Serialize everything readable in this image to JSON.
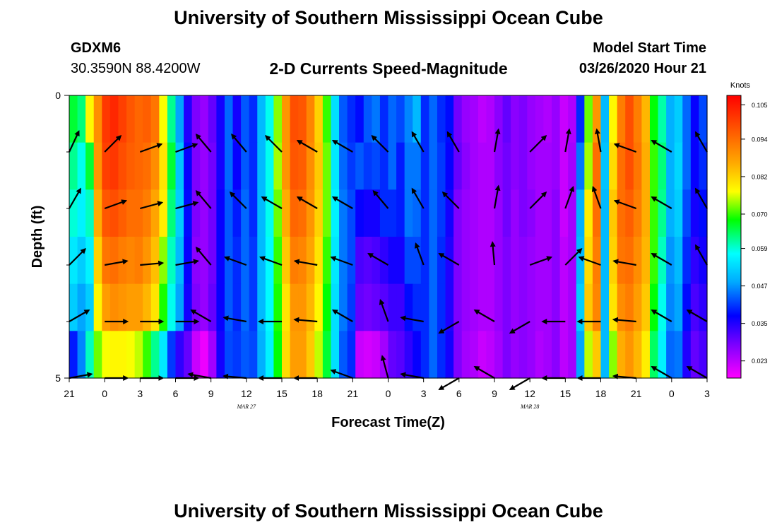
{
  "header": {
    "title_top": "University of Southern Mississippi Ocean Cube",
    "title_bottom": "University of Southern Mississippi Ocean Cube",
    "station": "GDXM6",
    "coords": "30.3590N 88.4200W",
    "plot_title": "2-D Currents Speed-Magnitude",
    "model_start_label": "Model Start Time",
    "model_start_value": "03/26/2020 Hour 21"
  },
  "chart_data": {
    "type": "heatmap",
    "title": "2-D Currents Speed-Magnitude",
    "xlabel": "Forecast Time(Z)",
    "ylabel": "Depth (ft)",
    "x_hours_range": [
      0,
      54
    ],
    "y_range": [
      0,
      5
    ],
    "y_ticks": [
      "0",
      "5"
    ],
    "x_ticks": [
      {
        "h": 0,
        "label": "21"
      },
      {
        "h": 3,
        "label": "0"
      },
      {
        "h": 6,
        "label": "3"
      },
      {
        "h": 9,
        "label": "6"
      },
      {
        "h": 12,
        "label": "9"
      },
      {
        "h": 15,
        "label": "12"
      },
      {
        "h": 18,
        "label": "15"
      },
      {
        "h": 21,
        "label": "18"
      },
      {
        "h": 24,
        "label": "21"
      },
      {
        "h": 27,
        "label": "0"
      },
      {
        "h": 30,
        "label": "3"
      },
      {
        "h": 33,
        "label": "6"
      },
      {
        "h": 36,
        "label": "9"
      },
      {
        "h": 39,
        "label": "12"
      },
      {
        "h": 42,
        "label": "15"
      },
      {
        "h": 45,
        "label": "18"
      },
      {
        "h": 48,
        "label": "21"
      },
      {
        "h": 51,
        "label": "0"
      },
      {
        "h": 54,
        "label": "3"
      }
    ],
    "date_labels": [
      {
        "h": 15,
        "label": "MAR 27"
      },
      {
        "h": 39,
        "label": "MAR 28"
      }
    ],
    "colorbar": {
      "unit": "Knots",
      "min": 0.0175,
      "max": 0.108,
      "ticks": [
        "0.105",
        "0.094",
        "0.082",
        "0.070",
        "0.059",
        "0.047",
        "0.035",
        "0.023"
      ]
    },
    "speed_knots": [
      [
        0.066,
        0.063,
        0.078,
        0.09,
        0.101,
        0.103,
        0.1,
        0.097,
        0.095,
        0.096,
        0.093,
        0.077,
        0.062,
        0.048,
        0.035,
        0.028,
        0.026,
        0.03,
        0.036,
        0.044,
        0.036,
        0.043,
        0.04,
        0.05,
        0.058,
        0.073,
        0.089,
        0.098,
        0.097,
        0.091,
        0.082,
        0.07,
        0.054,
        0.043,
        0.04,
        0.038,
        0.043,
        0.045,
        0.04,
        0.044,
        0.042,
        0.046,
        0.05,
        0.04,
        0.044,
        0.04,
        0.038,
        0.029,
        0.026,
        0.025,
        0.023,
        0.024,
        0.027,
        0.03,
        0.027,
        0.028,
        0.026,
        0.025,
        0.024,
        0.026,
        0.022,
        0.024,
        0.04,
        0.072,
        0.089,
        0.05,
        0.078,
        0.092,
        0.098,
        0.092,
        0.085,
        0.068,
        0.061,
        0.049,
        0.052,
        0.044,
        0.037,
        0.042
      ],
      [
        0.062,
        0.058,
        0.066,
        0.089,
        0.1,
        0.101,
        0.098,
        0.096,
        0.095,
        0.094,
        0.09,
        0.08,
        0.066,
        0.051,
        0.037,
        0.028,
        0.026,
        0.029,
        0.036,
        0.044,
        0.037,
        0.043,
        0.04,
        0.05,
        0.058,
        0.074,
        0.089,
        0.097,
        0.096,
        0.09,
        0.083,
        0.072,
        0.055,
        0.044,
        0.041,
        0.043,
        0.041,
        0.042,
        0.04,
        0.044,
        0.039,
        0.045,
        0.045,
        0.04,
        0.044,
        0.041,
        0.037,
        0.03,
        0.027,
        0.025,
        0.024,
        0.024,
        0.027,
        0.029,
        0.027,
        0.028,
        0.026,
        0.025,
        0.025,
        0.026,
        0.022,
        0.025,
        0.045,
        0.074,
        0.094,
        0.051,
        0.081,
        0.094,
        0.098,
        0.093,
        0.086,
        0.07,
        0.063,
        0.049,
        0.053,
        0.044,
        0.037,
        0.04
      ],
      [
        0.059,
        0.056,
        0.06,
        0.086,
        0.097,
        0.098,
        0.096,
        0.094,
        0.094,
        0.092,
        0.087,
        0.079,
        0.063,
        0.052,
        0.038,
        0.028,
        0.026,
        0.029,
        0.037,
        0.043,
        0.039,
        0.044,
        0.04,
        0.05,
        0.058,
        0.072,
        0.086,
        0.095,
        0.094,
        0.089,
        0.082,
        0.072,
        0.056,
        0.045,
        0.042,
        0.037,
        0.036,
        0.036,
        0.04,
        0.04,
        0.039,
        0.045,
        0.044,
        0.04,
        0.044,
        0.041,
        0.036,
        0.028,
        0.026,
        0.025,
        0.024,
        0.024,
        0.026,
        0.029,
        0.026,
        0.028,
        0.027,
        0.025,
        0.025,
        0.027,
        0.022,
        0.025,
        0.049,
        0.079,
        0.094,
        0.05,
        0.083,
        0.094,
        0.096,
        0.092,
        0.086,
        0.07,
        0.062,
        0.049,
        0.052,
        0.042,
        0.036,
        0.038
      ],
      [
        0.055,
        0.052,
        0.056,
        0.082,
        0.093,
        0.094,
        0.092,
        0.091,
        0.092,
        0.089,
        0.084,
        0.073,
        0.06,
        0.05,
        0.037,
        0.027,
        0.026,
        0.029,
        0.037,
        0.043,
        0.04,
        0.044,
        0.041,
        0.05,
        0.057,
        0.07,
        0.083,
        0.092,
        0.091,
        0.087,
        0.08,
        0.07,
        0.055,
        0.045,
        0.042,
        0.032,
        0.031,
        0.032,
        0.034,
        0.036,
        0.036,
        0.042,
        0.042,
        0.04,
        0.044,
        0.04,
        0.035,
        0.028,
        0.026,
        0.025,
        0.024,
        0.024,
        0.026,
        0.028,
        0.026,
        0.027,
        0.026,
        0.025,
        0.025,
        0.027,
        0.023,
        0.025,
        0.05,
        0.081,
        0.092,
        0.05,
        0.082,
        0.093,
        0.094,
        0.09,
        0.085,
        0.07,
        0.06,
        0.047,
        0.05,
        0.04,
        0.034,
        0.036
      ],
      [
        0.052,
        0.048,
        0.052,
        0.078,
        0.088,
        0.09,
        0.089,
        0.088,
        0.088,
        0.085,
        0.08,
        0.069,
        0.058,
        0.048,
        0.036,
        0.028,
        0.026,
        0.03,
        0.037,
        0.043,
        0.04,
        0.044,
        0.041,
        0.05,
        0.057,
        0.069,
        0.08,
        0.089,
        0.089,
        0.085,
        0.078,
        0.068,
        0.054,
        0.045,
        0.041,
        0.03,
        0.029,
        0.03,
        0.031,
        0.033,
        0.033,
        0.038,
        0.04,
        0.04,
        0.044,
        0.04,
        0.035,
        0.028,
        0.026,
        0.025,
        0.024,
        0.024,
        0.026,
        0.028,
        0.026,
        0.027,
        0.026,
        0.025,
        0.025,
        0.027,
        0.023,
        0.025,
        0.052,
        0.083,
        0.091,
        0.05,
        0.08,
        0.09,
        0.092,
        0.088,
        0.083,
        0.068,
        0.058,
        0.046,
        0.048,
        0.038,
        0.032,
        0.034
      ],
      [
        0.039,
        0.046,
        0.06,
        0.072,
        0.077,
        0.078,
        0.078,
        0.077,
        0.075,
        0.07,
        0.062,
        0.055,
        0.041,
        0.034,
        0.03,
        0.022,
        0.019,
        0.025,
        0.036,
        0.042,
        0.041,
        0.043,
        0.042,
        0.049,
        0.056,
        0.068,
        0.081,
        0.088,
        0.088,
        0.083,
        0.075,
        0.066,
        0.054,
        0.043,
        0.04,
        0.022,
        0.021,
        0.022,
        0.025,
        0.03,
        0.031,
        0.034,
        0.037,
        0.04,
        0.044,
        0.04,
        0.036,
        0.028,
        0.025,
        0.024,
        0.022,
        0.023,
        0.025,
        0.028,
        0.026,
        0.027,
        0.026,
        0.024,
        0.025,
        0.027,
        0.023,
        0.025,
        0.048,
        0.075,
        0.083,
        0.05,
        0.073,
        0.086,
        0.089,
        0.085,
        0.079,
        0.064,
        0.056,
        0.044,
        0.045,
        0.035,
        0.03,
        0.032
      ]
    ],
    "vectors_hours": [
      0,
      3,
      6,
      9,
      12,
      15,
      18,
      21,
      24,
      27,
      30,
      33,
      36,
      39,
      42,
      45,
      48,
      51,
      54
    ],
    "vectors_depth_rows": [
      1,
      2,
      3,
      4,
      5
    ],
    "vectors_direction_deg": [
      [
        25,
        45,
        70,
        70,
        320,
        320,
        315,
        300,
        300,
        315,
        330,
        330,
        10,
        45,
        10,
        350,
        290,
        300,
        330
      ],
      [
        30,
        70,
        75,
        75,
        320,
        315,
        300,
        300,
        300,
        320,
        330,
        315,
        10,
        45,
        20,
        340,
        290,
        300,
        330
      ],
      [
        45,
        80,
        85,
        80,
        320,
        290,
        290,
        280,
        290,
        300,
        340,
        300,
        355,
        70,
        45,
        290,
        280,
        300,
        330
      ],
      [
        60,
        90,
        90,
        90,
        300,
        280,
        270,
        275,
        300,
        340,
        280,
        240,
        300,
        240,
        270,
        270,
        275,
        300,
        300
      ],
      [
        80,
        90,
        90,
        90,
        280,
        275,
        270,
        270,
        290,
        345,
        280,
        240,
        300,
        240,
        270,
        270,
        275,
        300,
        300
      ]
    ]
  }
}
